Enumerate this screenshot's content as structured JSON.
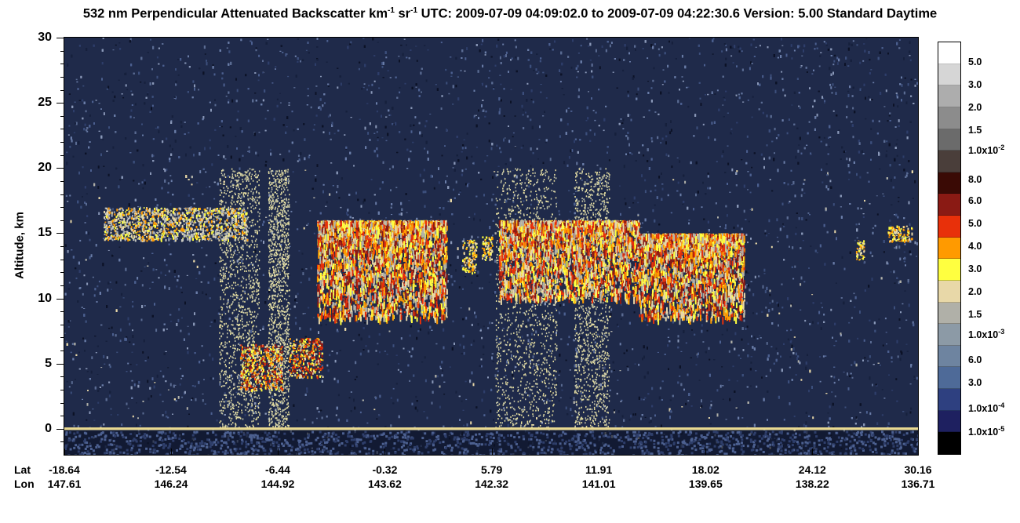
{
  "title": {
    "prefix": "532 nm Perpendicular Attenuated Backscatter km",
    "exp1": "-1",
    "mid": " sr",
    "exp2": "-1",
    "suffix": "  UTC: 2009-07-09 04:09:02.0 to 2009-07-09 04:22:30.6  Version: 5.00 Standard Daytime"
  },
  "chart_data": {
    "type": "heatmap",
    "title": "532 nm Perpendicular Attenuated Backscatter km-1 sr-1  UTC: 2009-07-09 04:09:02.0 to 2009-07-09 04:22:30.6  Version: 5.00 Standard Daytime",
    "ylabel": "Altitude, km",
    "ylim": [
      -2,
      30
    ],
    "y_ticks": [
      "0",
      "5",
      "10",
      "15",
      "20",
      "25",
      "30"
    ],
    "x_row_labels": [
      "Lat",
      "Lon"
    ],
    "lat_ticks": [
      "-18.64",
      "-12.54",
      "-6.44",
      "-0.32",
      "5.79",
      "11.91",
      "18.02",
      "24.12",
      "30.16"
    ],
    "lon_ticks": [
      "147.61",
      "146.24",
      "144.92",
      "143.62",
      "142.32",
      "141.01",
      "139.65",
      "138.22",
      "136.71"
    ],
    "colorbar": {
      "colors": [
        "#ffffff",
        "#d6d6d6",
        "#adadad",
        "#8c8c8c",
        "#6b6b6b",
        "#4a3e3a",
        "#3a0a05",
        "#8a1a14",
        "#e8300a",
        "#ff9a00",
        "#ffff40",
        "#e8d8a8",
        "#b0b0a8",
        "#8c9aa6",
        "#6e84a0",
        "#4e6a98",
        "#2e4080",
        "#1e2060",
        "#000000"
      ],
      "labels": [
        {
          "text": "5.0",
          "exp": ""
        },
        {
          "text": "3.0",
          "exp": ""
        },
        {
          "text": "2.0",
          "exp": ""
        },
        {
          "text": "1.5",
          "exp": ""
        },
        {
          "text": "1.0x10",
          "exp": "-2"
        },
        {
          "text": "8.0",
          "exp": ""
        },
        {
          "text": "6.0",
          "exp": ""
        },
        {
          "text": "5.0",
          "exp": ""
        },
        {
          "text": "4.0",
          "exp": ""
        },
        {
          "text": "3.0",
          "exp": ""
        },
        {
          "text": "2.0",
          "exp": ""
        },
        {
          "text": "1.5",
          "exp": ""
        },
        {
          "text": "1.0x10",
          "exp": "-3"
        },
        {
          "text": "6.0",
          "exp": ""
        },
        {
          "text": "3.0",
          "exp": ""
        },
        {
          "text": "1.0x10",
          "exp": "-4"
        },
        {
          "text": "1.0x10",
          "exp": "-5"
        }
      ]
    },
    "features": [
      {
        "name": "cirrus",
        "lat": [
          -16.4,
          -8.2
        ],
        "alt": [
          14.5,
          17.0
        ]
      },
      {
        "name": "anvil",
        "lat": [
          -4.2,
          3.2
        ],
        "alt": [
          8.5,
          16.0
        ]
      },
      {
        "name": "cloud",
        "lat": [
          4.1,
          4.9
        ],
        "alt": [
          12.0,
          14.5
        ]
      },
      {
        "name": "cloud",
        "lat": [
          5.2,
          5.8
        ],
        "alt": [
          13.0,
          14.8
        ]
      },
      {
        "name": "anvil",
        "lat": [
          6.2,
          14.2
        ],
        "alt": [
          10.0,
          16.0
        ]
      },
      {
        "name": "anvil",
        "lat": [
          14.2,
          20.2
        ],
        "alt": [
          8.5,
          15.0
        ]
      },
      {
        "name": "cloud",
        "lat": [
          26.6,
          27.1
        ],
        "alt": [
          13.0,
          14.5
        ]
      },
      {
        "name": "cloud",
        "lat": [
          28.4,
          29.8
        ],
        "alt": [
          14.4,
          15.6
        ]
      },
      {
        "name": "low_cloud",
        "lat": [
          -8.6,
          -6.2
        ],
        "alt": [
          3.0,
          6.5
        ]
      },
      {
        "name": "low_cloud",
        "lat": [
          -5.8,
          -3.9
        ],
        "alt": [
          4.0,
          7.0
        ]
      },
      {
        "name": "surface",
        "lat": [
          -18.64,
          30.16
        ],
        "alt": [
          -0.1,
          0.1
        ]
      }
    ]
  }
}
